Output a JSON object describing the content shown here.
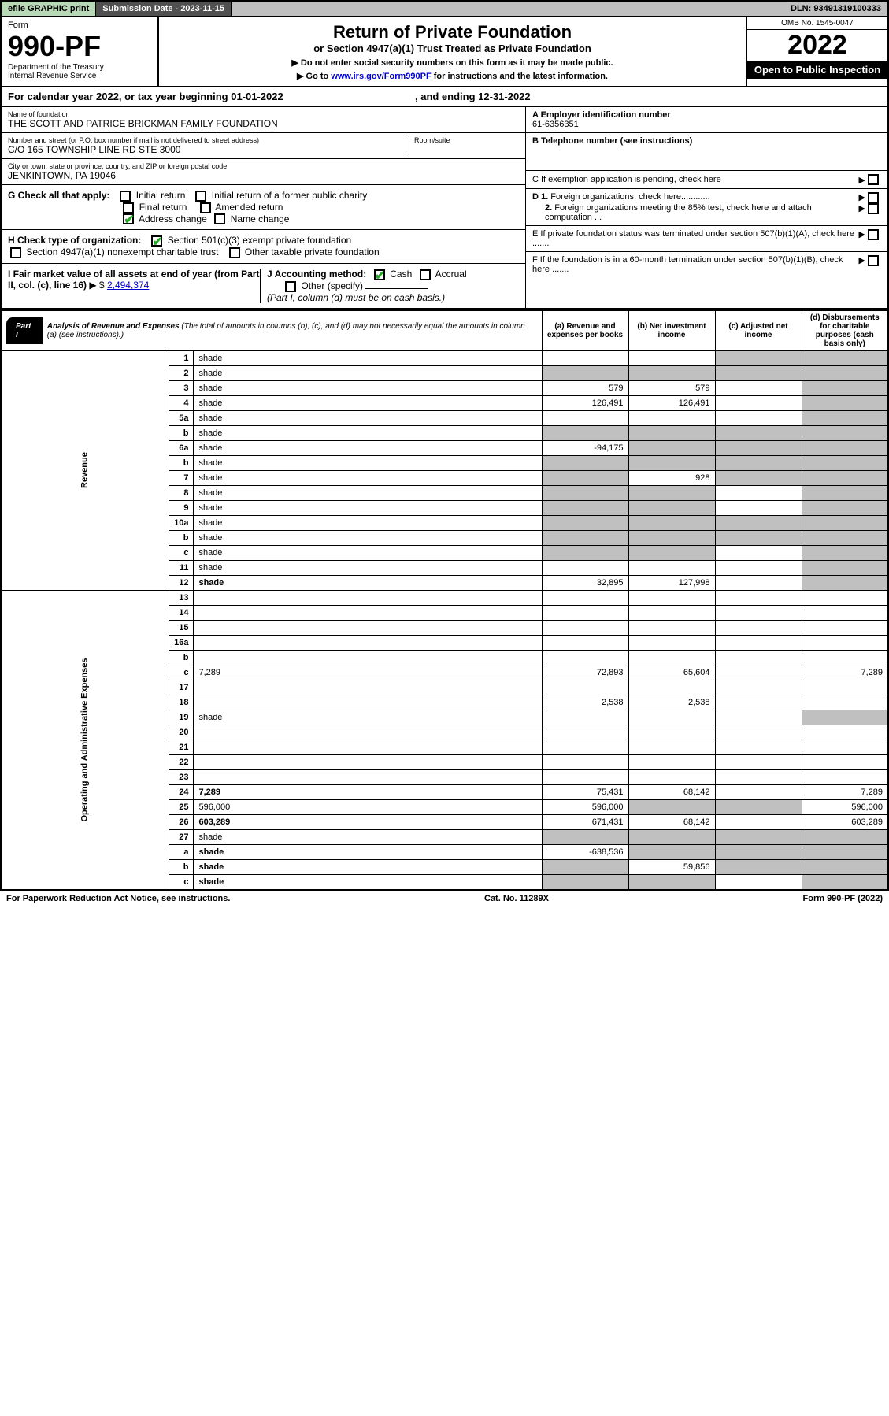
{
  "topbar": {
    "efile": "efile GRAPHIC print",
    "submission_label": "Submission Date - 2023-11-15",
    "dln": "DLN: 93491319100333"
  },
  "header": {
    "form_label": "Form",
    "form_number": "990-PF",
    "dept": "Department of the Treasury",
    "irs": "Internal Revenue Service",
    "title": "Return of Private Foundation",
    "subtitle1": "or Section 4947(a)(1) Trust Treated as Private Foundation",
    "subtitle2a": "▶ Do not enter social security numbers on this form as it may be made public.",
    "subtitle2b_pre": "▶ Go to ",
    "subtitle2b_link": "www.irs.gov/Form990PF",
    "subtitle2b_post": " for instructions and the latest information.",
    "omb": "OMB No. 1545-0047",
    "year": "2022",
    "open_public": "Open to Public Inspection"
  },
  "calendar": {
    "text_a": "For calendar year 2022, or tax year beginning 01-01-2022",
    "text_b": ", and ending 12-31-2022"
  },
  "entity": {
    "name_lbl": "Name of foundation",
    "name": "THE SCOTT AND PATRICE BRICKMAN FAMILY FOUNDATION",
    "addr_lbl": "Number and street (or P.O. box number if mail is not delivered to street address)",
    "addr": "C/O 165 TOWNSHIP LINE RD STE 3000",
    "room_lbl": "Room/suite",
    "city_lbl": "City or town, state or province, country, and ZIP or foreign postal code",
    "city": "JENKINTOWN, PA  19046",
    "ein_lbl": "A Employer identification number",
    "ein": "61-6356351",
    "tel_lbl": "B Telephone number (see instructions)",
    "c_lbl": "C If exemption application is pending, check here",
    "d1": "D 1. Foreign organizations, check here............",
    "d2": "2. Foreign organizations meeting the 85% test, check here and attach computation ...",
    "e": "E If private foundation status was terminated under section 507(b)(1)(A), check here .......",
    "f": "F If the foundation is in a 60-month termination under section 507(b)(1)(B), check here ......."
  },
  "checks": {
    "g_label": "G Check all that apply:",
    "initial": "Initial return",
    "initial_former": "Initial return of a former public charity",
    "final": "Final return",
    "amended": "Amended return",
    "address": "Address change",
    "name_change": "Name change",
    "h_label": "H Check type of organization:",
    "h_501c3": "Section 501(c)(3) exempt private foundation",
    "h_4947": "Section 4947(a)(1) nonexempt charitable trust",
    "h_other": "Other taxable private foundation",
    "i_label": "I Fair market value of all assets at end of year (from Part II, col. (c), line 16)",
    "i_value": "2,494,374",
    "j_label": "J Accounting method:",
    "j_cash": "Cash",
    "j_accrual": "Accrual",
    "j_other": "Other (specify)",
    "j_note": "(Part I, column (d) must be on cash basis.)"
  },
  "part1": {
    "label": "Part I",
    "title": "Analysis of Revenue and Expenses",
    "title_note": " (The total of amounts in columns (b), (c), and (d) may not necessarily equal the amounts in column (a) (see instructions).)",
    "col_a": "(a) Revenue and expenses per books",
    "col_b": "(b) Net investment income",
    "col_c": "(c) Adjusted net income",
    "col_d": "(d) Disbursements for charitable purposes (cash basis only)"
  },
  "side_labels": {
    "revenue": "Revenue",
    "expenses": "Operating and Administrative Expenses"
  },
  "rows": [
    {
      "n": "1",
      "d": "shade",
      "a": "",
      "b": "",
      "c": "shade"
    },
    {
      "n": "2",
      "d": "shade",
      "a": "shade",
      "b": "shade",
      "c": "shade",
      "bold": false
    },
    {
      "n": "3",
      "d": "shade",
      "a": "579",
      "b": "579",
      "c": ""
    },
    {
      "n": "4",
      "d": "shade",
      "a": "126,491",
      "b": "126,491",
      "c": ""
    },
    {
      "n": "5a",
      "d": "shade",
      "a": "",
      "b": "",
      "c": ""
    },
    {
      "n": "b",
      "d": "shade",
      "a": "shade",
      "b": "shade",
      "c": "shade"
    },
    {
      "n": "6a",
      "d": "shade",
      "a": "-94,175",
      "b": "shade",
      "c": "shade"
    },
    {
      "n": "b",
      "d": "shade",
      "a": "shade",
      "b": "shade",
      "c": "shade"
    },
    {
      "n": "7",
      "d": "shade",
      "a": "shade",
      "b": "928",
      "c": "shade"
    },
    {
      "n": "8",
      "d": "shade",
      "a": "shade",
      "b": "shade",
      "c": ""
    },
    {
      "n": "9",
      "d": "shade",
      "a": "shade",
      "b": "shade",
      "c": ""
    },
    {
      "n": "10a",
      "d": "shade",
      "a": "shade",
      "b": "shade",
      "c": "shade"
    },
    {
      "n": "b",
      "d": "shade",
      "a": "shade",
      "b": "shade",
      "c": "shade"
    },
    {
      "n": "c",
      "d": "shade",
      "a": "shade",
      "b": "shade",
      "c": ""
    },
    {
      "n": "11",
      "d": "shade",
      "a": "",
      "b": "",
      "c": ""
    },
    {
      "n": "12",
      "d": "shade",
      "a": "32,895",
      "b": "127,998",
      "c": "",
      "bold": true
    },
    {
      "n": "13",
      "d": "",
      "a": "",
      "b": "",
      "c": ""
    },
    {
      "n": "14",
      "d": "",
      "a": "",
      "b": "",
      "c": ""
    },
    {
      "n": "15",
      "d": "",
      "a": "",
      "b": "",
      "c": ""
    },
    {
      "n": "16a",
      "d": "",
      "a": "",
      "b": "",
      "c": ""
    },
    {
      "n": "b",
      "d": "",
      "a": "",
      "b": "",
      "c": ""
    },
    {
      "n": "c",
      "d": "7,289",
      "a": "72,893",
      "b": "65,604",
      "c": ""
    },
    {
      "n": "17",
      "d": "",
      "a": "",
      "b": "",
      "c": ""
    },
    {
      "n": "18",
      "d": "",
      "a": "2,538",
      "b": "2,538",
      "c": ""
    },
    {
      "n": "19",
      "d": "shade",
      "a": "",
      "b": "",
      "c": ""
    },
    {
      "n": "20",
      "d": "",
      "a": "",
      "b": "",
      "c": ""
    },
    {
      "n": "21",
      "d": "",
      "a": "",
      "b": "",
      "c": ""
    },
    {
      "n": "22",
      "d": "",
      "a": "",
      "b": "",
      "c": ""
    },
    {
      "n": "23",
      "d": "",
      "a": "",
      "b": "",
      "c": ""
    },
    {
      "n": "24",
      "d": "7,289",
      "a": "75,431",
      "b": "68,142",
      "c": "",
      "bold": true
    },
    {
      "n": "25",
      "d": "596,000",
      "a": "596,000",
      "b": "shade",
      "c": "shade"
    },
    {
      "n": "26",
      "d": "603,289",
      "a": "671,431",
      "b": "68,142",
      "c": "",
      "bold": true
    },
    {
      "n": "27",
      "d": "shade",
      "a": "shade",
      "b": "shade",
      "c": "shade"
    },
    {
      "n": "a",
      "d": "shade",
      "a": "-638,536",
      "b": "shade",
      "c": "shade",
      "bold": true
    },
    {
      "n": "b",
      "d": "shade",
      "a": "shade",
      "b": "59,856",
      "c": "shade",
      "bold": true
    },
    {
      "n": "c",
      "d": "shade",
      "a": "shade",
      "b": "shade",
      "c": "",
      "bold": true
    }
  ],
  "footer": {
    "left": "For Paperwork Reduction Act Notice, see instructions.",
    "mid": "Cat. No. 11289X",
    "right": "Form 990-PF (2022)"
  }
}
